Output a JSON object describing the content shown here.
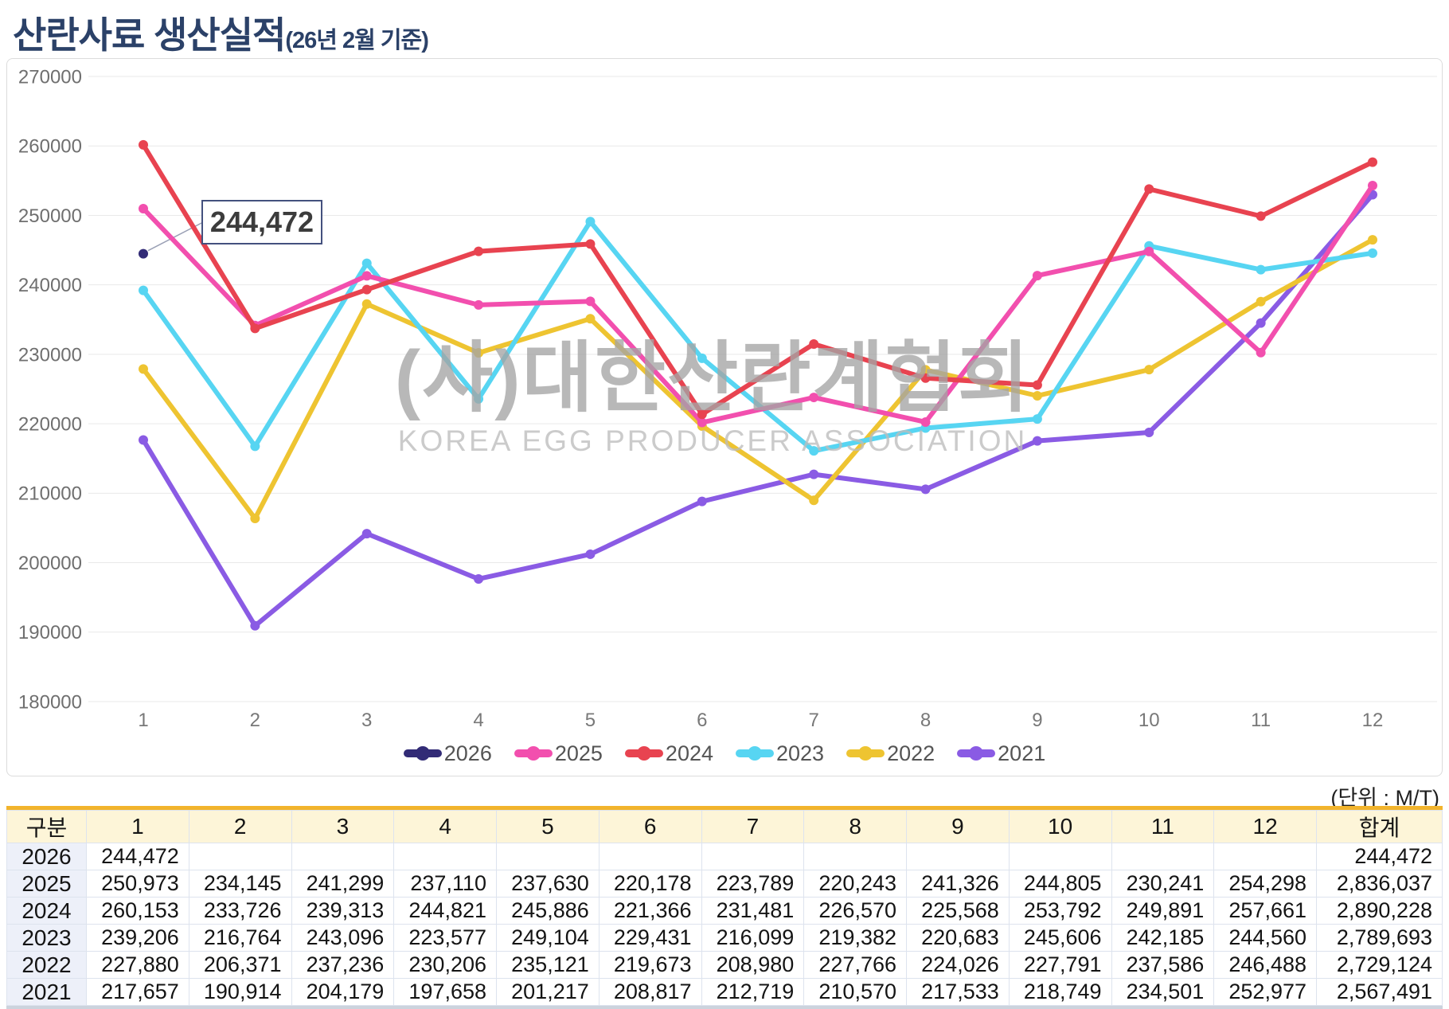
{
  "page": {
    "title": "산란사료 생산실적",
    "title_suffix": "(26년 2월 기준)",
    "unit_note": "(단위 : M/T)"
  },
  "watermark": {
    "line1": "(사)대한산란계협회",
    "line2": "KOREA EGG PRODUCER ASSOCIATION"
  },
  "annotation": {
    "text": "244,472",
    "series": "2026",
    "month": 1,
    "value": 244472
  },
  "colors": {
    "title_navy": "#2b4168",
    "grid": "#e9e9e9",
    "axis_text": "#6f6f6f",
    "x_axis_text": "#787878",
    "annotation_border": "#44517e",
    "callout_line": "#9aa0b5",
    "table_top_border": "#f2b42c",
    "table_header_bg": "#fdf5d8",
    "table_year_bg": "#edf0f9",
    "table_cell_border": "#dde3ee"
  },
  "chart_data": {
    "type": "line",
    "x": [
      1,
      2,
      3,
      4,
      5,
      6,
      7,
      8,
      9,
      10,
      11,
      12
    ],
    "ylim": [
      180000,
      270000
    ],
    "yticks": [
      270000,
      260000,
      250000,
      240000,
      230000,
      220000,
      210000,
      200000,
      190000,
      180000
    ],
    "grid": "horizontal",
    "legend_position": "bottom",
    "series": [
      {
        "name": "2026",
        "color": "#322b76",
        "values": [
          244472,
          null,
          null,
          null,
          null,
          null,
          null,
          null,
          null,
          null,
          null,
          null
        ]
      },
      {
        "name": "2025",
        "color": "#f24fae",
        "values": [
          250973,
          234145,
          241299,
          237110,
          237630,
          220178,
          223789,
          220243,
          241326,
          244805,
          230241,
          254298
        ]
      },
      {
        "name": "2024",
        "color": "#e84350",
        "values": [
          260153,
          233726,
          239313,
          244821,
          245886,
          221366,
          231481,
          226570,
          225568,
          253792,
          249891,
          257661
        ]
      },
      {
        "name": "2023",
        "color": "#57d5f2",
        "values": [
          239206,
          216764,
          243096,
          223577,
          249104,
          229431,
          216099,
          219382,
          220683,
          245606,
          242185,
          244560
        ]
      },
      {
        "name": "2022",
        "color": "#eec431",
        "values": [
          227880,
          206371,
          237236,
          230206,
          235121,
          219673,
          208980,
          227766,
          224026,
          227791,
          237586,
          246488
        ]
      },
      {
        "name": "2021",
        "color": "#8a5be4",
        "values": [
          217657,
          190914,
          204179,
          197658,
          201217,
          208817,
          212719,
          210570,
          217533,
          218749,
          234501,
          252977
        ]
      }
    ]
  },
  "table": {
    "headers": [
      "구분",
      "1",
      "2",
      "3",
      "4",
      "5",
      "6",
      "7",
      "8",
      "9",
      "10",
      "11",
      "12",
      "합계"
    ],
    "rows": [
      {
        "label": "2026",
        "values": [
          "244,472",
          "",
          "",
          "",
          "",
          "",
          "",
          "",
          "",
          "",
          "",
          ""
        ],
        "total": "244,472"
      },
      {
        "label": "2025",
        "values": [
          "250,973",
          "234,145",
          "241,299",
          "237,110",
          "237,630",
          "220,178",
          "223,789",
          "220,243",
          "241,326",
          "244,805",
          "230,241",
          "254,298"
        ],
        "total": "2,836,037"
      },
      {
        "label": "2024",
        "values": [
          "260,153",
          "233,726",
          "239,313",
          "244,821",
          "245,886",
          "221,366",
          "231,481",
          "226,570",
          "225,568",
          "253,792",
          "249,891",
          "257,661"
        ],
        "total": "2,890,228"
      },
      {
        "label": "2023",
        "values": [
          "239,206",
          "216,764",
          "243,096",
          "223,577",
          "249,104",
          "229,431",
          "216,099",
          "219,382",
          "220,683",
          "245,606",
          "242,185",
          "244,560"
        ],
        "total": "2,789,693"
      },
      {
        "label": "2022",
        "values": [
          "227,880",
          "206,371",
          "237,236",
          "230,206",
          "235,121",
          "219,673",
          "208,980",
          "227,766",
          "224,026",
          "227,791",
          "237,586",
          "246,488"
        ],
        "total": "2,729,124"
      },
      {
        "label": "2021",
        "values": [
          "217,657",
          "190,914",
          "204,179",
          "197,658",
          "201,217",
          "208,817",
          "212,719",
          "210,570",
          "217,533",
          "218,749",
          "234,501",
          "252,977"
        ],
        "total": "2,567,491"
      }
    ]
  }
}
